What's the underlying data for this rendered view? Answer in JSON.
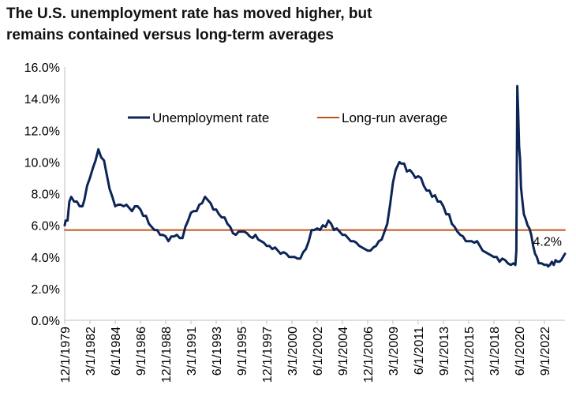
{
  "title_lines": [
    "The U.S. unemployment rate has moved higher, but",
    "remains contained versus long-term averages"
  ],
  "chart_data": {
    "type": "line",
    "title": "The U.S. unemployment rate has moved higher, but remains contained versus long-term averages",
    "xlabel": "",
    "ylabel": "",
    "ylim": [
      0,
      16
    ],
    "xlim": [
      "1979-12",
      "2024-07"
    ],
    "y_ticks": [
      "0.0%",
      "2.0%",
      "4.0%",
      "6.0%",
      "8.0%",
      "10.0%",
      "12.0%",
      "14.0%",
      "16.0%"
    ],
    "x_ticks": [
      {
        "label": "12/1/1979",
        "date": "1979-12"
      },
      {
        "label": "3/1/1982",
        "date": "1982-03"
      },
      {
        "label": "6/1/1984",
        "date": "1984-06"
      },
      {
        "label": "9/1/1986",
        "date": "1986-09"
      },
      {
        "label": "12/1/1988",
        "date": "1988-12"
      },
      {
        "label": "3/1/1991",
        "date": "1991-03"
      },
      {
        "label": "6/1/1993",
        "date": "1993-06"
      },
      {
        "label": "9/1/1995",
        "date": "1995-09"
      },
      {
        "label": "12/1/1997",
        "date": "1997-12"
      },
      {
        "label": "3/1/2000",
        "date": "2000-03"
      },
      {
        "label": "6/1/2002",
        "date": "2002-06"
      },
      {
        "label": "9/1/2004",
        "date": "2004-09"
      },
      {
        "label": "12/1/2006",
        "date": "2006-12"
      },
      {
        "label": "3/1/2009",
        "date": "2009-03"
      },
      {
        "label": "6/1/2011",
        "date": "2011-06"
      },
      {
        "label": "9/1/2013",
        "date": "2013-09"
      },
      {
        "label": "12/1/2015",
        "date": "2015-12"
      },
      {
        "label": "3/1/2018",
        "date": "2018-03"
      },
      {
        "label": "6/1/2020",
        "date": "2020-06"
      },
      {
        "label": "9/1/2022",
        "date": "2022-09"
      }
    ],
    "grid": false,
    "legend": {
      "placement": "top-center",
      "entries": [
        "Unemployment rate",
        "Long-run average"
      ]
    },
    "series": [
      {
        "name": "Unemployment rate",
        "color": "#0c2557",
        "points": [
          [
            "1979-12",
            6.0
          ],
          [
            "1980-01",
            6.3
          ],
          [
            "1980-03",
            6.3
          ],
          [
            "1980-05",
            7.5
          ],
          [
            "1980-07",
            7.8
          ],
          [
            "1980-10",
            7.5
          ],
          [
            "1981-01",
            7.5
          ],
          [
            "1981-04",
            7.2
          ],
          [
            "1981-07",
            7.2
          ],
          [
            "1981-09",
            7.6
          ],
          [
            "1981-12",
            8.5
          ],
          [
            "1982-03",
            9.0
          ],
          [
            "1982-06",
            9.6
          ],
          [
            "1982-09",
            10.1
          ],
          [
            "1982-12",
            10.8
          ],
          [
            "1983-03",
            10.3
          ],
          [
            "1983-06",
            10.1
          ],
          [
            "1983-09",
            9.2
          ],
          [
            "1983-12",
            8.3
          ],
          [
            "1984-03",
            7.8
          ],
          [
            "1984-06",
            7.2
          ],
          [
            "1984-09",
            7.3
          ],
          [
            "1984-12",
            7.3
          ],
          [
            "1985-03",
            7.2
          ],
          [
            "1985-06",
            7.3
          ],
          [
            "1985-09",
            7.1
          ],
          [
            "1985-12",
            6.9
          ],
          [
            "1986-03",
            7.2
          ],
          [
            "1986-06",
            7.2
          ],
          [
            "1986-09",
            7.0
          ],
          [
            "1986-12",
            6.6
          ],
          [
            "1987-03",
            6.6
          ],
          [
            "1987-06",
            6.1
          ],
          [
            "1987-09",
            5.9
          ],
          [
            "1987-12",
            5.7
          ],
          [
            "1988-03",
            5.7
          ],
          [
            "1988-06",
            5.4
          ],
          [
            "1988-09",
            5.4
          ],
          [
            "1988-12",
            5.3
          ],
          [
            "1989-03",
            5.0
          ],
          [
            "1989-06",
            5.3
          ],
          [
            "1989-09",
            5.3
          ],
          [
            "1989-12",
            5.4
          ],
          [
            "1990-03",
            5.2
          ],
          [
            "1990-06",
            5.2
          ],
          [
            "1990-09",
            5.9
          ],
          [
            "1990-12",
            6.3
          ],
          [
            "1991-03",
            6.8
          ],
          [
            "1991-06",
            6.9
          ],
          [
            "1991-09",
            6.9
          ],
          [
            "1991-12",
            7.3
          ],
          [
            "1992-03",
            7.4
          ],
          [
            "1992-06",
            7.8
          ],
          [
            "1992-09",
            7.6
          ],
          [
            "1992-12",
            7.4
          ],
          [
            "1993-03",
            7.0
          ],
          [
            "1993-06",
            7.0
          ],
          [
            "1993-09",
            6.7
          ],
          [
            "1993-12",
            6.5
          ],
          [
            "1994-03",
            6.5
          ],
          [
            "1994-06",
            6.1
          ],
          [
            "1994-09",
            5.9
          ],
          [
            "1994-12",
            5.5
          ],
          [
            "1995-03",
            5.4
          ],
          [
            "1995-06",
            5.6
          ],
          [
            "1995-09",
            5.6
          ],
          [
            "1995-12",
            5.6
          ],
          [
            "1996-03",
            5.5
          ],
          [
            "1996-06",
            5.3
          ],
          [
            "1996-09",
            5.2
          ],
          [
            "1996-12",
            5.4
          ],
          [
            "1997-03",
            5.1
          ],
          [
            "1997-06",
            5.0
          ],
          [
            "1997-09",
            4.9
          ],
          [
            "1997-12",
            4.7
          ],
          [
            "1998-03",
            4.7
          ],
          [
            "1998-06",
            4.5
          ],
          [
            "1998-09",
            4.6
          ],
          [
            "1998-12",
            4.4
          ],
          [
            "1999-03",
            4.2
          ],
          [
            "1999-06",
            4.3
          ],
          [
            "1999-09",
            4.2
          ],
          [
            "1999-12",
            4.0
          ],
          [
            "2000-03",
            4.0
          ],
          [
            "2000-06",
            4.0
          ],
          [
            "2000-09",
            3.9
          ],
          [
            "2000-12",
            3.9
          ],
          [
            "2001-03",
            4.3
          ],
          [
            "2001-06",
            4.5
          ],
          [
            "2001-09",
            5.0
          ],
          [
            "2001-12",
            5.7
          ],
          [
            "2002-03",
            5.7
          ],
          [
            "2002-06",
            5.8
          ],
          [
            "2002-09",
            5.7
          ],
          [
            "2002-12",
            6.0
          ],
          [
            "2003-03",
            5.9
          ],
          [
            "2003-06",
            6.3
          ],
          [
            "2003-09",
            6.1
          ],
          [
            "2003-12",
            5.7
          ],
          [
            "2004-03",
            5.8
          ],
          [
            "2004-06",
            5.6
          ],
          [
            "2004-09",
            5.4
          ],
          [
            "2004-12",
            5.4
          ],
          [
            "2005-03",
            5.2
          ],
          [
            "2005-06",
            5.0
          ],
          [
            "2005-09",
            5.0
          ],
          [
            "2005-12",
            4.9
          ],
          [
            "2006-03",
            4.7
          ],
          [
            "2006-06",
            4.6
          ],
          [
            "2006-09",
            4.5
          ],
          [
            "2006-12",
            4.4
          ],
          [
            "2007-03",
            4.4
          ],
          [
            "2007-06",
            4.6
          ],
          [
            "2007-09",
            4.7
          ],
          [
            "2007-12",
            5.0
          ],
          [
            "2008-03",
            5.1
          ],
          [
            "2008-06",
            5.6
          ],
          [
            "2008-09",
            6.1
          ],
          [
            "2008-12",
            7.3
          ],
          [
            "2009-03",
            8.7
          ],
          [
            "2009-06",
            9.5
          ],
          [
            "2009-10",
            10.0
          ],
          [
            "2009-12",
            9.9
          ],
          [
            "2010-03",
            9.9
          ],
          [
            "2010-06",
            9.4
          ],
          [
            "2010-09",
            9.5
          ],
          [
            "2010-12",
            9.3
          ],
          [
            "2011-03",
            9.0
          ],
          [
            "2011-06",
            9.1
          ],
          [
            "2011-09",
            9.0
          ],
          [
            "2011-12",
            8.5
          ],
          [
            "2012-03",
            8.2
          ],
          [
            "2012-06",
            8.2
          ],
          [
            "2012-09",
            7.8
          ],
          [
            "2012-12",
            7.9
          ],
          [
            "2013-03",
            7.5
          ],
          [
            "2013-06",
            7.5
          ],
          [
            "2013-09",
            7.2
          ],
          [
            "2013-12",
            6.7
          ],
          [
            "2014-03",
            6.7
          ],
          [
            "2014-06",
            6.1
          ],
          [
            "2014-09",
            5.9
          ],
          [
            "2014-12",
            5.6
          ],
          [
            "2015-03",
            5.4
          ],
          [
            "2015-06",
            5.3
          ],
          [
            "2015-09",
            5.0
          ],
          [
            "2015-12",
            5.0
          ],
          [
            "2016-03",
            5.0
          ],
          [
            "2016-06",
            4.9
          ],
          [
            "2016-09",
            5.0
          ],
          [
            "2016-12",
            4.7
          ],
          [
            "2017-03",
            4.4
          ],
          [
            "2017-06",
            4.3
          ],
          [
            "2017-09",
            4.2
          ],
          [
            "2017-12",
            4.1
          ],
          [
            "2018-03",
            4.0
          ],
          [
            "2018-06",
            4.0
          ],
          [
            "2018-09",
            3.7
          ],
          [
            "2018-12",
            3.9
          ],
          [
            "2019-03",
            3.8
          ],
          [
            "2019-06",
            3.6
          ],
          [
            "2019-09",
            3.5
          ],
          [
            "2019-12",
            3.6
          ],
          [
            "2020-02",
            3.5
          ],
          [
            "2020-03",
            4.4
          ],
          [
            "2020-04",
            14.8
          ],
          [
            "2020-05",
            13.2
          ],
          [
            "2020-06",
            11.0
          ],
          [
            "2020-07",
            10.2
          ],
          [
            "2020-08",
            8.4
          ],
          [
            "2020-09",
            7.8
          ],
          [
            "2020-11",
            6.7
          ],
          [
            "2021-01",
            6.4
          ],
          [
            "2021-03",
            6.0
          ],
          [
            "2021-05",
            5.8
          ],
          [
            "2021-07",
            5.4
          ],
          [
            "2021-09",
            4.7
          ],
          [
            "2021-11",
            4.2
          ],
          [
            "2022-01",
            4.0
          ],
          [
            "2022-03",
            3.6
          ],
          [
            "2022-06",
            3.6
          ],
          [
            "2022-09",
            3.5
          ],
          [
            "2022-12",
            3.5
          ],
          [
            "2023-01",
            3.4
          ],
          [
            "2023-03",
            3.5
          ],
          [
            "2023-05",
            3.7
          ],
          [
            "2023-07",
            3.5
          ],
          [
            "2023-09",
            3.8
          ],
          [
            "2023-11",
            3.7
          ],
          [
            "2024-01",
            3.7
          ],
          [
            "2024-03",
            3.8
          ],
          [
            "2024-05",
            4.0
          ],
          [
            "2024-07",
            4.2
          ]
        ]
      },
      {
        "name": "Long-run average",
        "color": "#c0531c",
        "points": [
          [
            "1979-12",
            5.7
          ],
          [
            "2024-07",
            5.7
          ]
        ]
      }
    ],
    "annotations": [
      {
        "text": "4.2%",
        "x": "2024-07",
        "y": 4.2
      }
    ]
  }
}
